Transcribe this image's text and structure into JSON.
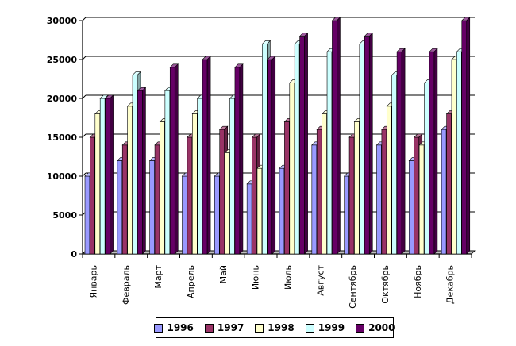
{
  "chart_data": {
    "type": "bar",
    "title": "",
    "xlabel": "",
    "ylabel": "",
    "ylim": [
      0,
      30000
    ],
    "yticks": [
      "0",
      "5000",
      "10000",
      "15000",
      "20000",
      "25000",
      "30000"
    ],
    "grid": true,
    "legend_position": "bottom",
    "categories": [
      "Январь",
      "Февраль",
      "Март",
      "Апрель",
      "Май",
      "Июнь",
      "Июль",
      "Август",
      "Сентябрь",
      "Октябрь",
      "Ноябрь",
      "Декабрь"
    ],
    "series": [
      {
        "name": "1996",
        "color": "#9999ff",
        "values": [
          10000,
          12000,
          12000,
          10000,
          10000,
          9000,
          11000,
          14000,
          10000,
          14000,
          12000,
          16000
        ]
      },
      {
        "name": "1997",
        "color": "#993366",
        "values": [
          15000,
          14000,
          14000,
          15000,
          16000,
          15000,
          17000,
          16000,
          15000,
          16000,
          15000,
          18000
        ]
      },
      {
        "name": "1998",
        "color": "#ffffcc",
        "values": [
          18000,
          19000,
          17000,
          18000,
          13000,
          11000,
          22000,
          18000,
          17000,
          19000,
          14000,
          25000
        ]
      },
      {
        "name": "1999",
        "color": "#ccffff",
        "values": [
          20000,
          23000,
          21000,
          20000,
          20000,
          27000,
          27000,
          26000,
          27000,
          23000,
          22000,
          26000
        ]
      },
      {
        "name": "2000",
        "color": "#660066",
        "values": [
          20000,
          21000,
          24000,
          25000,
          24000,
          25000,
          28000,
          30000,
          28000,
          26000,
          26000,
          30000
        ]
      }
    ]
  }
}
